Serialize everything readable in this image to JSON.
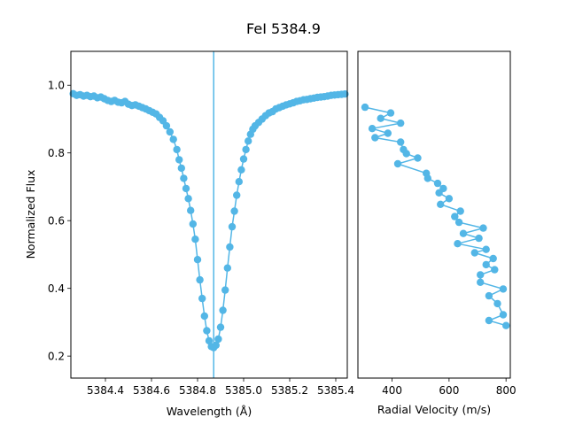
{
  "chart_data": [
    {
      "type": "line",
      "title": "FeI 5384.9",
      "xlabel": "Wavelength (Å)",
      "ylabel": "Normalized Flux",
      "xlim": [
        5384.25,
        5385.45
      ],
      "ylim": [
        0.135,
        1.1
      ],
      "xticks": [
        5384.4,
        5384.6,
        5384.8,
        5385.0,
        5385.2,
        5385.4
      ],
      "xtick_labels": [
        "5384.4",
        "5384.6",
        "5384.8",
        "5385.0",
        "5385.2",
        "5385.4"
      ],
      "yticks": [
        0.2,
        0.4,
        0.6,
        0.8,
        1.0
      ],
      "ytick_labels": [
        "0.2",
        "0.4",
        "0.6",
        "0.8",
        "1.0"
      ],
      "reference_line_x": 5384.87,
      "grid": false,
      "x": [
        5384.26,
        5384.275,
        5384.29,
        5384.305,
        5384.32,
        5384.335,
        5384.35,
        5384.365,
        5384.38,
        5384.395,
        5384.41,
        5384.425,
        5384.44,
        5384.455,
        5384.47,
        5384.485,
        5384.5,
        5384.515,
        5384.53,
        5384.545,
        5384.56,
        5384.575,
        5384.59,
        5384.605,
        5384.62,
        5384.635,
        5384.65,
        5384.665,
        5384.68,
        5384.695,
        5384.71,
        5384.72,
        5384.73,
        5384.74,
        5384.75,
        5384.76,
        5384.77,
        5384.78,
        5384.79,
        5384.8,
        5384.81,
        5384.82,
        5384.83,
        5384.84,
        5384.85,
        5384.86,
        5384.87,
        5384.88,
        5384.89,
        5384.9,
        5384.91,
        5384.92,
        5384.93,
        5384.94,
        5384.95,
        5384.96,
        5384.97,
        5384.98,
        5384.99,
        5385.0,
        5385.01,
        5385.02,
        5385.03,
        5385.04,
        5385.05,
        5385.065,
        5385.08,
        5385.095,
        5385.11,
        5385.125,
        5385.14,
        5385.155,
        5385.17,
        5385.185,
        5385.2,
        5385.215,
        5385.23,
        5385.245,
        5385.26,
        5385.275,
        5385.29,
        5385.305,
        5385.32,
        5385.335,
        5385.35,
        5385.365,
        5385.38,
        5385.395,
        5385.41,
        5385.425,
        5385.44
      ],
      "y": [
        0.975,
        0.97,
        0.972,
        0.968,
        0.97,
        0.966,
        0.968,
        0.963,
        0.965,
        0.96,
        0.955,
        0.952,
        0.955,
        0.95,
        0.948,
        0.952,
        0.944,
        0.94,
        0.942,
        0.938,
        0.934,
        0.93,
        0.925,
        0.92,
        0.915,
        0.905,
        0.895,
        0.88,
        0.862,
        0.84,
        0.81,
        0.78,
        0.755,
        0.725,
        0.695,
        0.665,
        0.63,
        0.59,
        0.545,
        0.485,
        0.425,
        0.37,
        0.318,
        0.275,
        0.245,
        0.228,
        0.225,
        0.232,
        0.25,
        0.285,
        0.335,
        0.395,
        0.46,
        0.522,
        0.582,
        0.628,
        0.675,
        0.715,
        0.75,
        0.782,
        0.81,
        0.835,
        0.855,
        0.87,
        0.88,
        0.89,
        0.9,
        0.91,
        0.918,
        0.922,
        0.93,
        0.934,
        0.938,
        0.942,
        0.945,
        0.948,
        0.952,
        0.954,
        0.957,
        0.958,
        0.96,
        0.962,
        0.964,
        0.965,
        0.966,
        0.968,
        0.97,
        0.971,
        0.972,
        0.973,
        0.974
      ]
    },
    {
      "type": "line",
      "xlabel": "Radial Velocity (m/s)",
      "xlim": [
        280,
        815
      ],
      "ylim": [
        0.135,
        1.1
      ],
      "xticks": [
        400,
        600,
        800
      ],
      "xtick_labels": [
        "400",
        "600",
        "800"
      ],
      "grid": false,
      "x": [
        305,
        395,
        360,
        430,
        330,
        385,
        340,
        430,
        440,
        450,
        490,
        420,
        520,
        525,
        560,
        580,
        565,
        600,
        570,
        640,
        620,
        635,
        720,
        650,
        705,
        630,
        730,
        690,
        755,
        730,
        760,
        710,
        710,
        790,
        740,
        770,
        790,
        740,
        800
      ],
      "y": [
        0.935,
        0.918,
        0.902,
        0.888,
        0.872,
        0.858,
        0.845,
        0.832,
        0.81,
        0.798,
        0.785,
        0.768,
        0.74,
        0.725,
        0.71,
        0.695,
        0.682,
        0.665,
        0.648,
        0.628,
        0.612,
        0.595,
        0.578,
        0.562,
        0.548,
        0.532,
        0.515,
        0.505,
        0.488,
        0.47,
        0.455,
        0.44,
        0.418,
        0.398,
        0.378,
        0.355,
        0.322,
        0.305,
        0.29
      ]
    }
  ],
  "colors": {
    "series": "#53b6e6",
    "axis": "#000000",
    "background": "#ffffff"
  }
}
